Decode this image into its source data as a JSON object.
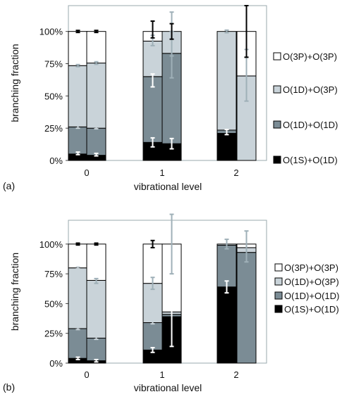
{
  "chart_data": [
    {
      "type": "bar",
      "panel_label": "(a)",
      "stacked": true,
      "xlabel": "vibrational level",
      "ylabel": "branching fraction",
      "ylim": [
        0,
        1.2
      ],
      "yticks": [
        "0%",
        "25%",
        "50%",
        "75%",
        "100%"
      ],
      "ytick_values": [
        0,
        0.25,
        0.5,
        0.75,
        1.0
      ],
      "grid": false,
      "legend_position": "right",
      "categories": [
        "0",
        "1",
        "2"
      ],
      "legend": [
        {
          "name": "O(3P)+O(3P)",
          "color": "#ffffff"
        },
        {
          "name": "O(1D)+O(3P)",
          "color": "#c9d3d9"
        },
        {
          "name": "O(1D)+O(1D)",
          "color": "#7b8c95"
        },
        {
          "name": "O(1S)+O(1D)",
          "color": "#000000"
        }
      ],
      "bars": [
        {
          "level": "0",
          "stack": [
            0.05,
            0.26,
            0.735,
            1.0
          ],
          "errors": [
            {
              "y": 0.055,
              "e": 0.01,
              "color": "#ffffff"
            },
            {
              "y": 0.26,
              "e": 0.01,
              "color": "#c9d3d9"
            },
            {
              "y": 0.735,
              "e": 0.008,
              "color": "#9fb0b8"
            },
            {
              "y": 1.0,
              "e": 0.008,
              "color": "#000000"
            }
          ]
        },
        {
          "level": "0",
          "stack": [
            0.04,
            0.25,
            0.755,
            1.0
          ],
          "errors": [
            {
              "y": 0.045,
              "e": 0.01,
              "color": "#ffffff"
            },
            {
              "y": 0.255,
              "e": 0.01,
              "color": "#c9d3d9"
            },
            {
              "y": 0.755,
              "e": 0.01,
              "color": "#9fb0b8"
            },
            {
              "y": 1.0,
              "e": 0.008,
              "color": "#000000"
            }
          ]
        },
        {
          "level": "1",
          "stack": [
            0.14,
            0.65,
            0.925,
            1.0
          ],
          "errors": [
            {
              "y": 0.14,
              "e": 0.035,
              "color": "#ffffff"
            },
            {
              "y": 0.62,
              "e": 0.05,
              "color": "#ffffff"
            },
            {
              "y": 0.93,
              "e": 0.04,
              "color": "#9fb0b8"
            },
            {
              "y": 1.015,
              "e": 0.065,
              "color": "#000000"
            }
          ]
        },
        {
          "level": "1",
          "stack": [
            0.13,
            0.83,
            1.0,
            1.0
          ],
          "errors": [
            {
              "y": 0.13,
              "e": 0.04,
              "color": "#ffffff"
            },
            {
              "y": 0.82,
              "e": 0.18,
              "color": "#9fb0b8"
            },
            {
              "y": 0.98,
              "e": 0.17,
              "color": "#9fb0b8"
            },
            {
              "y": 1.0,
              "e": 0.06,
              "color": "#000000"
            }
          ]
        },
        {
          "level": "2",
          "stack": [
            0.21,
            0.235,
            1.0,
            1.0
          ],
          "errors": [
            {
              "y": 0.22,
              "e": 0.02,
              "color": "#ffffff"
            },
            {
              "y": 1.0,
              "e": 0.01,
              "color": "#9fb0b8"
            }
          ]
        },
        {
          "level": "2",
          "stack": [
            0.0,
            0.0,
            0.655,
            1.0
          ],
          "errors": [
            {
              "y": 0.66,
              "e": 0.2,
              "color": "#9fb0b8"
            },
            {
              "y": 1.0,
              "e": 0.2,
              "color": "#000000"
            }
          ]
        }
      ]
    },
    {
      "type": "bar",
      "panel_label": "(b)",
      "stacked": true,
      "xlabel": "vibrational level",
      "ylabel": "branching fraction",
      "ylim": [
        0,
        1.2
      ],
      "yticks": [
        "0%",
        "25%",
        "50%",
        "75%",
        "100%"
      ],
      "ytick_values": [
        0,
        0.25,
        0.5,
        0.75,
        1.0
      ],
      "grid": false,
      "legend_position": "right",
      "categories": [
        "0",
        "1",
        "2"
      ],
      "legend": [
        {
          "name": "O(3P)+O(3P)",
          "color": "#ffffff"
        },
        {
          "name": "O(1D)+O(3P)",
          "color": "#c9d3d9"
        },
        {
          "name": "O(1D)+O(1D)",
          "color": "#7b8c95"
        },
        {
          "name": "O(1S)+O(1D)",
          "color": "#000000"
        }
      ],
      "bars": [
        {
          "level": "0",
          "stack": [
            0.04,
            0.29,
            0.8,
            1.0
          ],
          "errors": [
            {
              "y": 0.04,
              "e": 0.01,
              "color": "#ffffff"
            },
            {
              "y": 0.29,
              "e": 0.008,
              "color": "#c9d3d9"
            },
            {
              "y": 0.8,
              "e": 0.008,
              "color": "#c9d3d9"
            },
            {
              "y": 1.0,
              "e": 0.008,
              "color": "#000000"
            }
          ]
        },
        {
          "level": "0",
          "stack": [
            0.02,
            0.21,
            0.695,
            1.0
          ],
          "errors": [
            {
              "y": 0.02,
              "e": 0.01,
              "color": "#ffffff"
            },
            {
              "y": 0.21,
              "e": 0.01,
              "color": "#c9d3d9"
            },
            {
              "y": 0.69,
              "e": 0.02,
              "color": "#9fb0b8"
            },
            {
              "y": 1.0,
              "e": 0.008,
              "color": "#000000"
            }
          ]
        },
        {
          "level": "1",
          "stack": [
            0.11,
            0.34,
            0.67,
            1.0
          ],
          "errors": [
            {
              "y": 0.11,
              "e": 0.02,
              "color": "#ffffff"
            },
            {
              "y": 0.34,
              "e": 0.01,
              "color": "#c9d3d9"
            },
            {
              "y": 0.67,
              "e": 0.05,
              "color": "#9fb0b8"
            },
            {
              "y": 1.0,
              "e": 0.03,
              "color": "#000000"
            }
          ]
        },
        {
          "level": "1",
          "stack": [
            0.39,
            0.41,
            0.43,
            1.0
          ],
          "errors": [
            {
              "y": 0.37,
              "e": 0.23,
              "color": "#ffffff"
            },
            {
              "y": 1.0,
              "e": 0.25,
              "color": "#9fb0b8"
            }
          ]
        },
        {
          "level": "2",
          "stack": [
            0.64,
            0.99,
            1.0,
            1.0
          ],
          "errors": [
            {
              "y": 0.64,
              "e": 0.05,
              "color": "#ffffff"
            },
            {
              "y": 1.0,
              "e": 0.04,
              "color": "#9fb0b8"
            }
          ]
        },
        {
          "level": "2",
          "stack": [
            0.0,
            0.93,
            0.97,
            1.0
          ],
          "errors": [
            {
              "y": 0.98,
              "e": 0.13,
              "color": "#9fb0b8"
            }
          ]
        }
      ]
    }
  ]
}
